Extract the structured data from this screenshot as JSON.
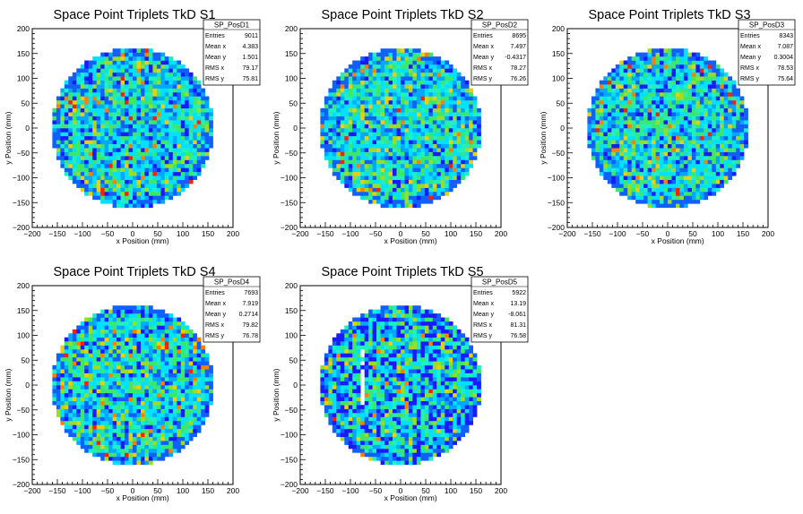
{
  "page": {
    "background": "#ffffff"
  },
  "colors": {
    "palette": [
      "#1a1aff",
      "#1060ff",
      "#00a8ff",
      "#00e0ff",
      "#20f0c0",
      "#3ce86a",
      "#9cdc24",
      "#e8d010",
      "#ff8000",
      "#ff2000"
    ],
    "frame": "#000000"
  },
  "chart_data": [
    {
      "type": "heatmap",
      "title": "Space Point Triplets TkD S1",
      "xlabel": "x Position (mm)",
      "ylabel": "y Position (mm)",
      "xlim": [
        -200,
        200
      ],
      "ylim": [
        -200,
        200
      ],
      "xticks": [
        "−200",
        "−150",
        "−100",
        "−50",
        "0",
        "50",
        "100",
        "150",
        "200"
      ],
      "yticks": [
        "200",
        "150",
        "100",
        "50",
        "0",
        "−50",
        "−100",
        "−150",
        "−200"
      ],
      "disk_radius": 160,
      "grid": false,
      "stats": {
        "name": "SP_PosD1",
        "rows": [
          [
            "Entries",
            "9011"
          ],
          [
            "Mean x",
            "4.383"
          ],
          [
            "Mean y",
            "1.501"
          ],
          [
            "RMS x",
            "79.17"
          ],
          [
            "RMS y",
            "75.81"
          ]
        ]
      }
    },
    {
      "type": "heatmap",
      "title": "Space Point Triplets TkD S2",
      "xlabel": "x Position (mm)",
      "ylabel": "y Position (mm)",
      "xlim": [
        -200,
        200
      ],
      "ylim": [
        -200,
        200
      ],
      "xticks": [
        "−200",
        "−150",
        "−100",
        "−50",
        "0",
        "50",
        "100",
        "150",
        "200"
      ],
      "yticks": [
        "200",
        "150",
        "100",
        "50",
        "0",
        "−50",
        "−100",
        "−150",
        "−200"
      ],
      "disk_radius": 160,
      "grid": false,
      "stats": {
        "name": "SP_PosD2",
        "rows": [
          [
            "Entries",
            "8695"
          ],
          [
            "Mean x",
            "7.497"
          ],
          [
            "Mean y",
            "-0.4317"
          ],
          [
            "RMS x",
            "78.27"
          ],
          [
            "RMS y",
            "76.26"
          ]
        ]
      }
    },
    {
      "type": "heatmap",
      "title": "Space Point Triplets TkD S3",
      "xlabel": "x Position (mm)",
      "ylabel": "y Position (mm)",
      "xlim": [
        -200,
        200
      ],
      "ylim": [
        -200,
        200
      ],
      "xticks": [
        "−200",
        "−150",
        "−100",
        "−50",
        "0",
        "50",
        "100",
        "150",
        "200"
      ],
      "yticks": [
        "200",
        "150",
        "100",
        "50",
        "0",
        "−50",
        "−100",
        "−150",
        "−200"
      ],
      "disk_radius": 160,
      "grid": false,
      "stats": {
        "name": "SP_PosD3",
        "rows": [
          [
            "Entries",
            "8343"
          ],
          [
            "Mean x",
            "7.087"
          ],
          [
            "Mean y",
            "0.3004"
          ],
          [
            "RMS x",
            "78.53"
          ],
          [
            "RMS y",
            "75.64"
          ]
        ]
      }
    },
    {
      "type": "heatmap",
      "title": "Space Point Triplets TkD S4",
      "xlabel": "x Position (mm)",
      "ylabel": "y Position (mm)",
      "xlim": [
        -200,
        200
      ],
      "ylim": [
        -200,
        200
      ],
      "xticks": [
        "−200",
        "−150",
        "−100",
        "−50",
        "0",
        "50",
        "100",
        "150",
        "200"
      ],
      "yticks": [
        "200",
        "150",
        "100",
        "50",
        "0",
        "−50",
        "−100",
        "−150",
        "−200"
      ],
      "disk_radius": 160,
      "grid": false,
      "stats": {
        "name": "SP_PosD4",
        "rows": [
          [
            "Entries",
            "7693"
          ],
          [
            "Mean x",
            "7.919"
          ],
          [
            "Mean y",
            "0.2714"
          ],
          [
            "RMS x",
            "79.82"
          ],
          [
            "RMS y",
            "76.78"
          ]
        ]
      }
    },
    {
      "type": "heatmap",
      "title": "Space Point Triplets TkD S5",
      "xlabel": "x Position (mm)",
      "ylabel": "y Position (mm)",
      "xlim": [
        -200,
        200
      ],
      "ylim": [
        -200,
        200
      ],
      "xticks": [
        "−200",
        "−150",
        "−100",
        "−50",
        "0",
        "50",
        "100",
        "150",
        "200"
      ],
      "yticks": [
        "200",
        "150",
        "100",
        "50",
        "0",
        "−50",
        "−100",
        "−150",
        "−200"
      ],
      "disk_radius": 160,
      "grid": false,
      "stats": {
        "name": "SP_PosD5",
        "rows": [
          [
            "Entries",
            "5922"
          ],
          [
            "Mean x",
            "13.19"
          ],
          [
            "Mean y",
            "-8.061"
          ],
          [
            "RMS x",
            "81.31"
          ],
          [
            "RMS y",
            "76.58"
          ]
        ]
      }
    }
  ]
}
